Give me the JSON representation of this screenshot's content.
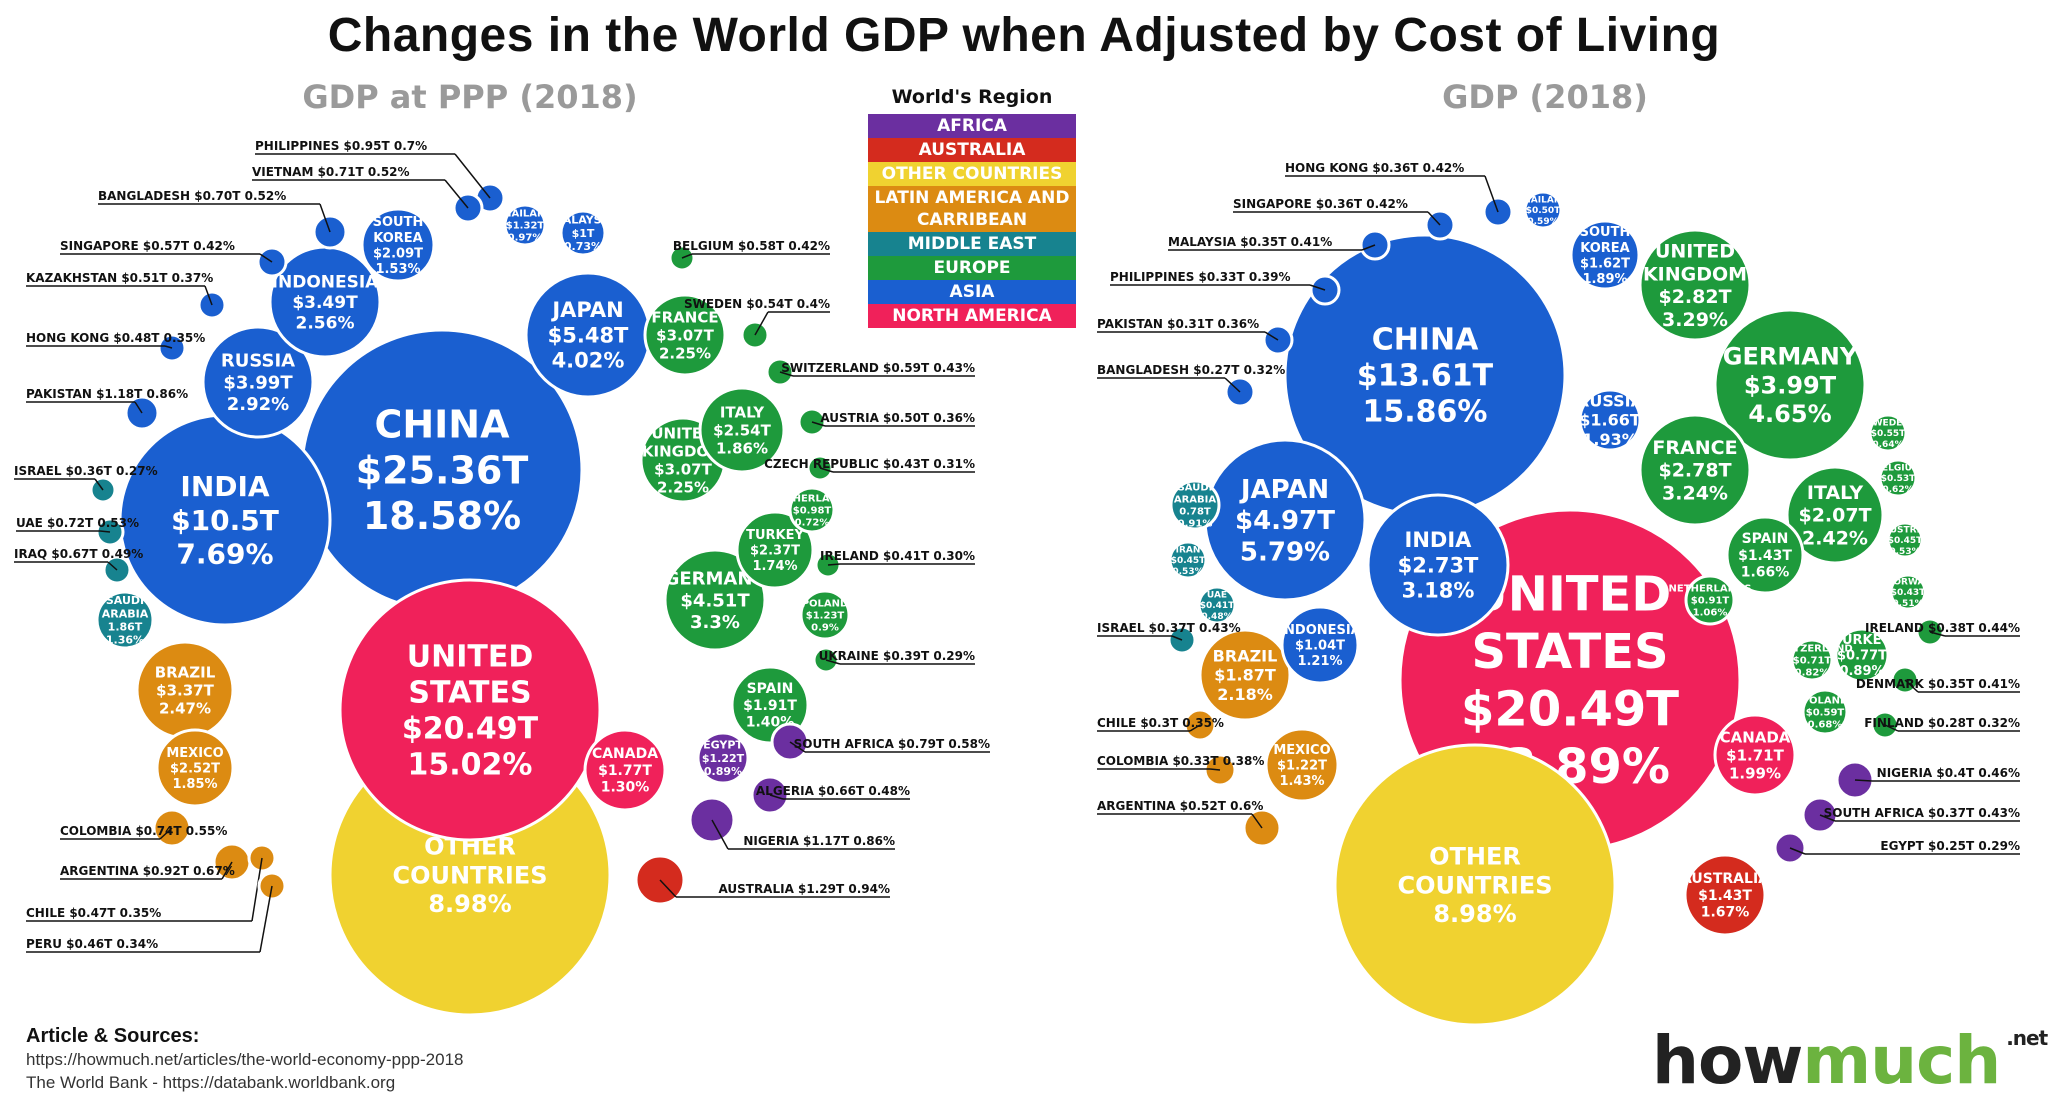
{
  "title": "Changes in the World GDP when Adjusted by Cost of Living",
  "legend": {
    "title": "World's Region",
    "items": [
      {
        "label": "AFRICA",
        "color": "#6b2fa0"
      },
      {
        "label": "AUSTRALIA",
        "color": "#d42b1e"
      },
      {
        "label": "OTHER COUNTRIES",
        "color": "#f0d230"
      },
      {
        "label": "LATIN AMERICA AND CARRIBEAN",
        "color": "#dc8b12"
      },
      {
        "label": "MIDDLE EAST",
        "color": "#17838f"
      },
      {
        "label": "EUROPE",
        "color": "#1e9a3c"
      },
      {
        "label": "ASIA",
        "color": "#1a5fd0"
      },
      {
        "label": "NORTH AMERICA",
        "color": "#f0215a"
      }
    ]
  },
  "sources": {
    "title": "Article & Sources:",
    "line1": "https://howmuch.net/articles/the-world-economy-ppp-2018",
    "line2": "The World Bank - https://databank.worldbank.org"
  },
  "brand": {
    "part1": "how",
    "part2": "much",
    "suffix": ".net"
  },
  "chart_data": [
    {
      "type": "voronoi-treemap",
      "title": "GDP at PPP (2018)",
      "cells": [
        {
          "name": "CHINA",
          "value": "$25.36T",
          "share": "18.58%",
          "region": "ASIA"
        },
        {
          "name": "UNITED STATES",
          "value": "$20.49T",
          "share": "15.02%",
          "region": "NORTH AMERICA"
        },
        {
          "name": "INDIA",
          "value": "$10.5T",
          "share": "7.69%",
          "region": "ASIA"
        },
        {
          "name": "JAPAN",
          "value": "$5.48T",
          "share": "4.02%",
          "region": "ASIA"
        },
        {
          "name": "GERMANY",
          "value": "$4.51T",
          "share": "3.3%",
          "region": "EUROPE"
        },
        {
          "name": "RUSSIA",
          "value": "$3.99T",
          "share": "2.92%",
          "region": "ASIA"
        },
        {
          "name": "INDONESIA",
          "value": "$3.49T",
          "share": "2.56%",
          "region": "ASIA"
        },
        {
          "name": "BRAZIL",
          "value": "$3.37T",
          "share": "2.47%",
          "region": "LATIN AMERICA AND CARRIBEAN"
        },
        {
          "name": "FRANCE",
          "value": "$3.07T",
          "share": "2.25%",
          "region": "EUROPE"
        },
        {
          "name": "UNITED KINGDOM",
          "value": "$3.07T",
          "share": "2.25%",
          "region": "EUROPE"
        },
        {
          "name": "ITALY",
          "value": "$2.54T",
          "share": "1.86%",
          "region": "EUROPE"
        },
        {
          "name": "MEXICO",
          "value": "$2.52T",
          "share": "1.85%",
          "region": "LATIN AMERICA AND CARRIBEAN"
        },
        {
          "name": "TURKEY",
          "value": "$2.37T",
          "share": "1.74%",
          "region": "EUROPE"
        },
        {
          "name": "SOUTH KOREA",
          "value": "$2.09T",
          "share": "1.53%",
          "region": "ASIA"
        },
        {
          "name": "SPAIN",
          "value": "$1.91T",
          "share": "1.40%",
          "region": "EUROPE"
        },
        {
          "name": "SAUDI ARABIA",
          "value": "1.86T",
          "share": "1.36%",
          "region": "MIDDLE EAST"
        },
        {
          "name": "CANADA",
          "value": "$1.77T",
          "share": "1.30%",
          "region": "NORTH AMERICA"
        },
        {
          "name": "THAILAND",
          "value": "$1.32T",
          "share": "0.97%",
          "region": "ASIA"
        },
        {
          "name": "EGYPT",
          "value": "$1.22T",
          "share": "0.89%",
          "region": "AFRICA"
        },
        {
          "name": "MALAYSIA",
          "value": "$1T",
          "share": "0.73%",
          "region": "ASIA"
        },
        {
          "name": "NETHERLANDS",
          "value": "$0.98T",
          "share": "0.72%",
          "region": "EUROPE"
        },
        {
          "name": "POLAND",
          "value": "$1.23T",
          "share": "0.9%",
          "region": "EUROPE"
        },
        {
          "name": "PHILIPPINES",
          "value": "$0.95T",
          "share": "0.7%",
          "region": "ASIA"
        },
        {
          "name": "VIETNAM",
          "value": "$0.71T",
          "share": "0.52%",
          "region": "ASIA"
        },
        {
          "name": "BANGLADESH",
          "value": "$0.70T",
          "share": "0.52%",
          "region": "ASIA"
        },
        {
          "name": "SINGAPORE",
          "value": "$0.57T",
          "share": "0.42%",
          "region": "ASIA"
        },
        {
          "name": "KAZAKHSTAN",
          "value": "$0.51T",
          "share": "0.37%",
          "region": "ASIA"
        },
        {
          "name": "HONG KONG",
          "value": "$0.48T",
          "share": "0.35%",
          "region": "ASIA"
        },
        {
          "name": "PAKISTAN",
          "value": "$1.18T",
          "share": "0.86%",
          "region": "ASIA"
        },
        {
          "name": "ISRAEL",
          "value": "$0.36T",
          "share": "0.27%",
          "region": "MIDDLE EAST"
        },
        {
          "name": "UAE",
          "value": "$0.72T",
          "share": "0.53%",
          "region": "MIDDLE EAST"
        },
        {
          "name": "IRAQ",
          "value": "$0.67T",
          "share": "0.49%",
          "region": "MIDDLE EAST"
        },
        {
          "name": "BELGIUM",
          "value": "$0.58T",
          "share": "0.42%",
          "region": "EUROPE"
        },
        {
          "name": "SWEDEN",
          "value": "$0.54T",
          "share": "0.4%",
          "region": "EUROPE"
        },
        {
          "name": "SWITZERLAND",
          "value": "$0.59T",
          "share": "0.43%",
          "region": "EUROPE"
        },
        {
          "name": "AUSTRIA",
          "value": "$0.50T",
          "share": "0.36%",
          "region": "EUROPE"
        },
        {
          "name": "CZECH REPUBLIC",
          "value": "$0.43T",
          "share": "0.31%",
          "region": "EUROPE"
        },
        {
          "name": "IRELAND",
          "value": "$0.41T",
          "share": "0.30%",
          "region": "EUROPE"
        },
        {
          "name": "UKRAINE",
          "value": "$0.39T",
          "share": "0.29%",
          "region": "EUROPE"
        },
        {
          "name": "SOUTH AFRICA",
          "value": "$0.79T",
          "share": "0.58%",
          "region": "AFRICA"
        },
        {
          "name": "ALGERIA",
          "value": "$0.66T",
          "share": "0.48%",
          "region": "AFRICA"
        },
        {
          "name": "NIGERIA",
          "value": "$1.17T",
          "share": "0.86%",
          "region": "AFRICA"
        },
        {
          "name": "AUSTRALIA",
          "value": "$1.29T",
          "share": "0.94%",
          "region": "AUSTRALIA"
        },
        {
          "name": "COLOMBIA",
          "value": "$0.74T",
          "share": "0.55%",
          "region": "LATIN AMERICA AND CARRIBEAN"
        },
        {
          "name": "ARGENTINA",
          "value": "$0.92T",
          "share": "0.67%",
          "region": "LATIN AMERICA AND CARRIBEAN"
        },
        {
          "name": "CHILE",
          "value": "$0.47T",
          "share": "0.35%",
          "region": "LATIN AMERICA AND CARRIBEAN"
        },
        {
          "name": "PERU",
          "value": "$0.46T",
          "share": "0.34%",
          "region": "LATIN AMERICA AND CARRIBEAN"
        },
        {
          "name": "OTHER COUNTRIES",
          "value": "",
          "share": "8.98%",
          "region": "OTHER COUNTRIES"
        }
      ]
    },
    {
      "type": "voronoi-treemap",
      "title": "GDP (2018)",
      "cells": [
        {
          "name": "UNITED STATES",
          "value": "$20.49T",
          "share": "23.89%",
          "region": "NORTH AMERICA"
        },
        {
          "name": "CHINA",
          "value": "$13.61T",
          "share": "15.86%",
          "region": "ASIA"
        },
        {
          "name": "JAPAN",
          "value": "$4.97T",
          "share": "5.79%",
          "region": "ASIA"
        },
        {
          "name": "GERMANY",
          "value": "$3.99T",
          "share": "4.65%",
          "region": "EUROPE"
        },
        {
          "name": "UNITED KINGDOM",
          "value": "$2.82T",
          "share": "3.29%",
          "region": "EUROPE"
        },
        {
          "name": "FRANCE",
          "value": "$2.78T",
          "share": "3.24%",
          "region": "EUROPE"
        },
        {
          "name": "INDIA",
          "value": "$2.73T",
          "share": "3.18%",
          "region": "ASIA"
        },
        {
          "name": "ITALY",
          "value": "$2.07T",
          "share": "2.42%",
          "region": "EUROPE"
        },
        {
          "name": "BRAZIL",
          "value": "$1.87T",
          "share": "2.18%",
          "region": "LATIN AMERICA AND CARRIBEAN"
        },
        {
          "name": "CANADA",
          "value": "$1.71T",
          "share": "1.99%",
          "region": "NORTH AMERICA"
        },
        {
          "name": "RUSSIA",
          "value": "$1.66T",
          "share": "1.93%",
          "region": "ASIA"
        },
        {
          "name": "SOUTH KOREA",
          "value": "$1.62T",
          "share": "1.89%",
          "region": "ASIA"
        },
        {
          "name": "AUSTRALIA",
          "value": "$1.43T",
          "share": "1.67%",
          "region": "AUSTRALIA"
        },
        {
          "name": "SPAIN",
          "value": "$1.43T",
          "share": "1.66%",
          "region": "EUROPE"
        },
        {
          "name": "MEXICO",
          "value": "$1.22T",
          "share": "1.43%",
          "region": "LATIN AMERICA AND CARRIBEAN"
        },
        {
          "name": "INDONESIA",
          "value": "$1.04T",
          "share": "1.21%",
          "region": "ASIA"
        },
        {
          "name": "NETHERLANDS",
          "value": "$0.91T",
          "share": "1.06%",
          "region": "EUROPE"
        },
        {
          "name": "SAUDI ARABIA",
          "value": "0.78T",
          "share": "0.91%",
          "region": "MIDDLE EAST"
        },
        {
          "name": "TURKEY",
          "value": "$0.77T",
          "share": "0.89%",
          "region": "EUROPE"
        },
        {
          "name": "SWITZERLAND",
          "value": "$0.71T",
          "share": "0.82%",
          "region": "EUROPE"
        },
        {
          "name": "POLAND",
          "value": "$0.59T",
          "share": "0.68%",
          "region": "EUROPE"
        },
        {
          "name": "SWEDEN",
          "value": "$0.55T",
          "share": "0.64%",
          "region": "EUROPE"
        },
        {
          "name": "BELGIUM",
          "value": "$0.53T",
          "share": "0.62%",
          "region": "EUROPE"
        },
        {
          "name": "THAILAND",
          "value": "$0.50T",
          "share": "0.59%",
          "region": "ASIA"
        },
        {
          "name": "IRAN",
          "value": "$0.45T",
          "share": "0.53%",
          "region": "MIDDLE EAST"
        },
        {
          "name": "AUSTRIA",
          "value": "$0.45T",
          "share": "0.53%",
          "region": "EUROPE"
        },
        {
          "name": "NORWAY",
          "value": "$0.43T",
          "share": "0.51%",
          "region": "EUROPE"
        },
        {
          "name": "UAE",
          "value": "$0.41T",
          "share": "0.48%",
          "region": "MIDDLE EAST"
        },
        {
          "name": "HONG KONG",
          "value": "$0.36T",
          "share": "0.42%",
          "region": "ASIA"
        },
        {
          "name": "SINGAPORE",
          "value": "$0.36T",
          "share": "0.42%",
          "region": "ASIA"
        },
        {
          "name": "MALAYSIA",
          "value": "$0.35T",
          "share": "0.41%",
          "region": "ASIA"
        },
        {
          "name": "PHILIPPINES",
          "value": "$0.33T",
          "share": "0.39%",
          "region": "ASIA"
        },
        {
          "name": "PAKISTAN",
          "value": "$0.31T",
          "share": "0.36%",
          "region": "ASIA"
        },
        {
          "name": "BANGLADESH",
          "value": "$0.27T",
          "share": "0.32%",
          "region": "ASIA"
        },
        {
          "name": "ISRAEL",
          "value": "$0.37T",
          "share": "0.43%",
          "region": "MIDDLE EAST"
        },
        {
          "name": "CHILE",
          "value": "$0.3T",
          "share": "0.35%",
          "region": "LATIN AMERICA AND CARRIBEAN"
        },
        {
          "name": "COLOMBIA",
          "value": "$0.33T",
          "share": "0.38%",
          "region": "LATIN AMERICA AND CARRIBEAN"
        },
        {
          "name": "ARGENTINA",
          "value": "$0.52T",
          "share": "0.6%",
          "region": "LATIN AMERICA AND CARRIBEAN"
        },
        {
          "name": "IRELAND",
          "value": "$0.38T",
          "share": "0.44%",
          "region": "EUROPE"
        },
        {
          "name": "DENMARK",
          "value": "$0.35T",
          "share": "0.41%",
          "region": "EUROPE"
        },
        {
          "name": "FINLAND",
          "value": "$0.28T",
          "share": "0.32%",
          "region": "EUROPE"
        },
        {
          "name": "NIGERIA",
          "value": "$0.4T",
          "share": "0.46%",
          "region": "AFRICA"
        },
        {
          "name": "SOUTH AFRICA",
          "value": "$0.37T",
          "share": "0.43%",
          "region": "AFRICA"
        },
        {
          "name": "EGYPT",
          "value": "$0.25T",
          "share": "0.29%",
          "region": "AFRICA"
        },
        {
          "name": "OTHER COUNTRIES",
          "value": "",
          "share": "8.98%",
          "region": "OTHER COUNTRIES"
        }
      ]
    }
  ]
}
